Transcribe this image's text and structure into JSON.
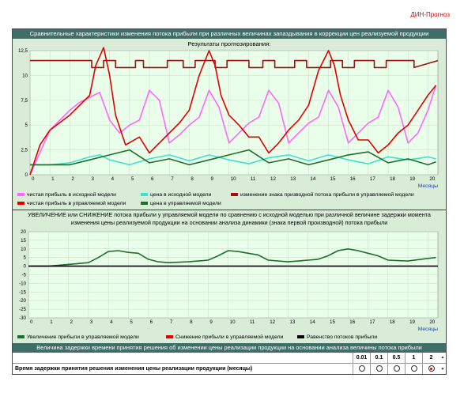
{
  "app": {
    "brand": "ДИН-Прогноз"
  },
  "top_title": "Сравнительные характеристики изменения потока прибыли при различных величинах запаздывания в коррекции цен реализуемой продукции",
  "chart1_subtitle": "Результаты прогнозирования:",
  "chart1_xlabel": "Месяцы",
  "chart1_legend": [
    {
      "label": "чистая прибыль в исходной модели",
      "color": "#ff66ff"
    },
    {
      "label": "цена в исходной модели",
      "color": "#40e0d0"
    },
    {
      "label": "изменение знака призводной потока прибыли в управляемой модели",
      "color": "#a01010"
    },
    {
      "label": "чистая прибыль в управляемой модели",
      "color": "#e00000"
    },
    {
      "label": "цена в управляемой модели",
      "color": "#1e6e2e"
    }
  ],
  "description": "УВЕЛИЧЕНИЕ или СНИЖЕНИЕ потока прибыли у управляемой модели по сравнению с исходной моделью при различной величине задержки момента изменения цены реализуемой продукции на основании анализа динамики (знака первой производной) потока прибыли",
  "chart2_xlabel": "Месяцы",
  "chart2_legend": [
    {
      "label": "Увеличение прибыли в управляемой модели",
      "color": "#1e6e2e"
    },
    {
      "label": "Снижение прибыли в управляемой модели",
      "color": "#e00000"
    },
    {
      "label": "Равенство потоков прибыли",
      "color": "#000000"
    }
  ],
  "bottom_title": "Величина задержки времени принятия решения об изменении цены реализации продукции на основании анализа величины потока прибыли",
  "delay_table": {
    "row_label": "Время задержки принятия решения изменения цены реализации продукции (месяцы)",
    "options": [
      "0.01",
      "0.1",
      "0.5",
      "1",
      "2"
    ],
    "selected": "2"
  },
  "chart_data": [
    {
      "type": "line",
      "title": "Результаты прогнозирования:",
      "xlabel": "Месяцы",
      "ylabel": "",
      "xlim": [
        0,
        20.5
      ],
      "ylim": [
        0,
        12.5
      ],
      "x_ticks": [
        0,
        1,
        2,
        3,
        4,
        5,
        6,
        7,
        8,
        9,
        10,
        11,
        12,
        13,
        14,
        15,
        16,
        17,
        18,
        19,
        20
      ],
      "y_ticks": [
        0,
        2.5,
        5,
        7.5,
        10,
        12.5
      ],
      "grid": true,
      "series": [
        {
          "name": "чистая прибыль в исходной модели",
          "color": "#ff66ff",
          "x": [
            0,
            1,
            2,
            2.5,
            3,
            3.5,
            4,
            4.5,
            5,
            5.5,
            6,
            6.5,
            7,
            7.5,
            8,
            8.5,
            9,
            9.5,
            10,
            10.5,
            11,
            11.5,
            12,
            12.5,
            13,
            13.5,
            14,
            14.5,
            15,
            15.5,
            16,
            16.5,
            17,
            17.5,
            18,
            18.5,
            19,
            19.5,
            20,
            20.4
          ],
          "y": [
            0,
            4.5,
            6.5,
            7.3,
            7.8,
            8.3,
            5.5,
            4.2,
            5.0,
            5.5,
            8.5,
            7.5,
            3.2,
            4.0,
            5.0,
            5.8,
            8.5,
            6.8,
            3.2,
            4.2,
            5.2,
            5.8,
            8.5,
            7.2,
            3.2,
            4.2,
            5.2,
            5.8,
            8.5,
            6.8,
            3.2,
            4.2,
            5.2,
            5.8,
            8.5,
            6.8,
            3.2,
            4.2,
            6.5,
            9.0
          ]
        },
        {
          "name": "цена в исходной модели",
          "color": "#40e0d0",
          "x": [
            0,
            1,
            2,
            3,
            3.5,
            4,
            5,
            6,
            7,
            8,
            9,
            10,
            11,
            12,
            13,
            14,
            15,
            16,
            17,
            18,
            19,
            20,
            20.4
          ],
          "y": [
            1.0,
            1.0,
            1.2,
            1.8,
            2.0,
            1.5,
            1.0,
            1.6,
            2.0,
            1.4,
            2.0,
            1.5,
            1.1,
            1.7,
            2.0,
            1.4,
            2.0,
            1.5,
            1.1,
            1.8,
            1.5,
            1.8,
            1.6
          ]
        },
        {
          "name": "изменение знака призводной потока прибыли в управляемой модели",
          "color": "#a01010",
          "x": [
            0,
            3.1,
            3.1,
            3.7,
            3.7,
            4.3,
            4.3,
            5.3,
            5.3,
            5.7,
            5.7,
            6.9,
            6.9,
            7.7,
            7.7,
            8.3,
            8.3,
            9.3,
            9.3,
            9.9,
            9.9,
            11.0,
            11.0,
            11.7,
            11.7,
            12.3,
            12.3,
            13.3,
            13.3,
            13.9,
            13.9,
            15.1,
            15.1,
            15.7,
            15.7,
            16.3,
            16.3,
            17.3,
            17.3,
            17.9,
            17.9,
            19.3,
            19.3,
            20.5
          ],
          "y": [
            11.5,
            11.5,
            10.8,
            10.8,
            11.5,
            11.5,
            10.8,
            10.8,
            11.5,
            11.5,
            10.8,
            10.8,
            11.5,
            11.5,
            10.8,
            10.8,
            11.5,
            11.5,
            10.8,
            10.8,
            11.5,
            11.5,
            10.8,
            10.8,
            11.5,
            11.5,
            10.8,
            10.8,
            11.5,
            11.5,
            10.8,
            10.8,
            11.5,
            11.5,
            10.8,
            10.8,
            11.5,
            11.5,
            10.8,
            10.8,
            11.5,
            11.5,
            10.8,
            11.5
          ]
        },
        {
          "name": "чистая прибыль в управляемой модели",
          "color": "#e00000",
          "x": [
            0,
            0.5,
            1,
            2,
            3,
            3.3,
            3.7,
            4,
            4.3,
            4.8,
            5.5,
            6,
            6.5,
            7,
            7.5,
            8,
            8.5,
            9,
            9.3,
            9.6,
            10,
            10.5,
            11,
            11.5,
            12,
            12.5,
            13,
            13.5,
            14,
            14.5,
            15,
            15.3,
            15.6,
            16,
            16.5,
            17,
            17.5,
            18,
            18.5,
            19,
            19.5,
            20,
            20.4
          ],
          "y": [
            0,
            3.0,
            4.5,
            6.0,
            8.0,
            11.0,
            12.8,
            10.0,
            6.0,
            3.0,
            3.8,
            2.2,
            3.2,
            4.2,
            5.2,
            6.5,
            10.0,
            12.5,
            11.0,
            8.0,
            6.0,
            5.0,
            3.8,
            3.8,
            2.2,
            3.2,
            4.5,
            5.5,
            7.0,
            10.5,
            12.5,
            11.0,
            8.0,
            5.5,
            3.5,
            3.5,
            2.2,
            3.0,
            4.2,
            5.0,
            6.5,
            8.0,
            9.0
          ]
        },
        {
          "name": "цена в управляемой модели",
          "color": "#1e6e2e",
          "x": [
            0,
            1,
            2,
            3,
            4,
            5,
            6,
            7,
            8,
            9,
            10,
            11,
            12,
            13,
            14,
            15,
            16,
            17,
            18,
            19,
            20,
            20.4
          ],
          "y": [
            1.0,
            1.0,
            1.0,
            1.5,
            2.0,
            2.5,
            1.2,
            1.6,
            1.0,
            1.5,
            2.0,
            2.5,
            1.2,
            1.6,
            1.0,
            1.5,
            2.0,
            2.3,
            1.2,
            1.6,
            1.0,
            1.3
          ]
        }
      ]
    },
    {
      "type": "line",
      "title": "",
      "xlabel": "Месяцы",
      "ylabel": "",
      "xlim": [
        0,
        20.5
      ],
      "ylim": [
        -30,
        20
      ],
      "x_ticks": [
        0,
        1,
        2,
        3,
        4,
        5,
        6,
        7,
        8,
        9,
        10,
        11,
        12,
        13,
        14,
        15,
        16,
        17,
        18,
        19,
        20
      ],
      "y_ticks": [
        20,
        15,
        10,
        5,
        0,
        -5,
        -10,
        -15,
        -20,
        -25,
        -30
      ],
      "grid": true,
      "series": [
        {
          "name": "Увеличение прибыли в управляемой модели",
          "color": "#1e6e2e",
          "x": [
            0,
            1,
            2,
            2.5,
            3,
            3.5,
            4,
            4.5,
            5,
            5.5,
            6,
            6.5,
            7,
            8,
            9,
            9.5,
            10,
            10.5,
            11,
            11.5,
            12,
            13,
            14,
            14.5,
            15,
            15.5,
            16,
            16.5,
            17,
            17.5,
            18,
            19,
            20,
            20.4
          ],
          "y": [
            0,
            0,
            1.0,
            1.5,
            2.0,
            5.0,
            8.5,
            9.0,
            8.0,
            7.5,
            4.0,
            2.5,
            2.0,
            2.5,
            3.5,
            6.0,
            9.0,
            8.5,
            7.5,
            6.5,
            3.5,
            2.5,
            3.5,
            4.0,
            6.0,
            9.0,
            10.0,
            9.0,
            7.5,
            6.0,
            3.5,
            3.0,
            4.5,
            5.0
          ]
        },
        {
          "name": "Равенство потоков прибыли",
          "color": "#000000",
          "x": [
            0,
            20.5
          ],
          "y": [
            0,
            0
          ]
        }
      ]
    }
  ]
}
